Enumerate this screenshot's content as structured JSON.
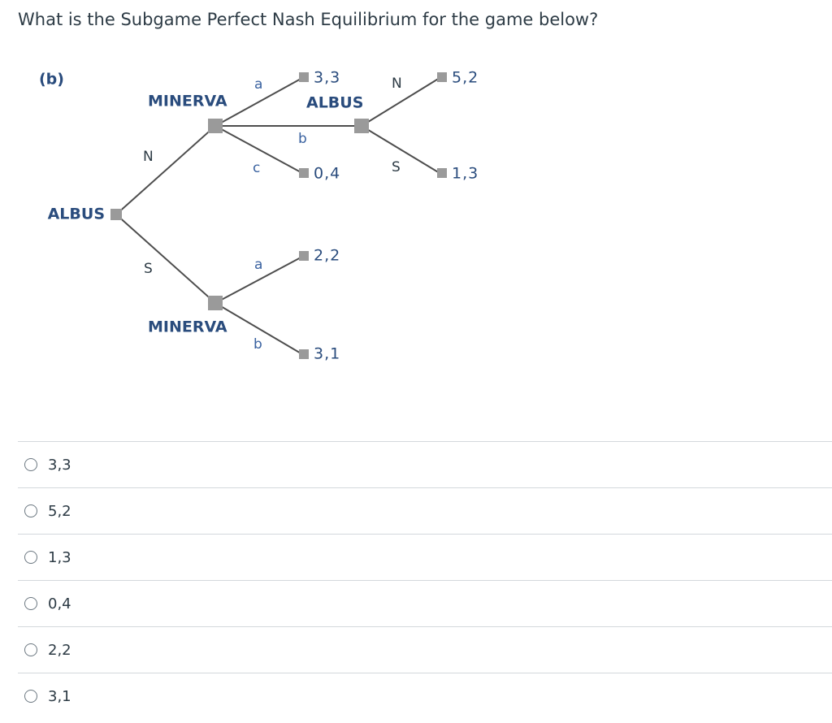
{
  "question": "What is the Subgame Perfect Nash Equilibrium for the game below?",
  "diagram": {
    "label": "(b)",
    "nodes": [
      {
        "label": "ALBUS"
      },
      {
        "label": "MINERVA"
      },
      {
        "label": "MINERVA"
      },
      {
        "label": "ALBUS"
      }
    ],
    "edges": [
      {
        "label": "N"
      },
      {
        "label": "S"
      },
      {
        "label": "a"
      },
      {
        "label": "b"
      },
      {
        "label": "c"
      },
      {
        "label": "N"
      },
      {
        "label": "S"
      },
      {
        "label": "a"
      },
      {
        "label": "b"
      }
    ],
    "payoffs": [
      "3,3",
      "0,4",
      "5,2",
      "1,3",
      "2,2",
      "3,1"
    ]
  },
  "options": [
    "3,3",
    "5,2",
    "1,3",
    "0,4",
    "2,2",
    "3,1"
  ]
}
